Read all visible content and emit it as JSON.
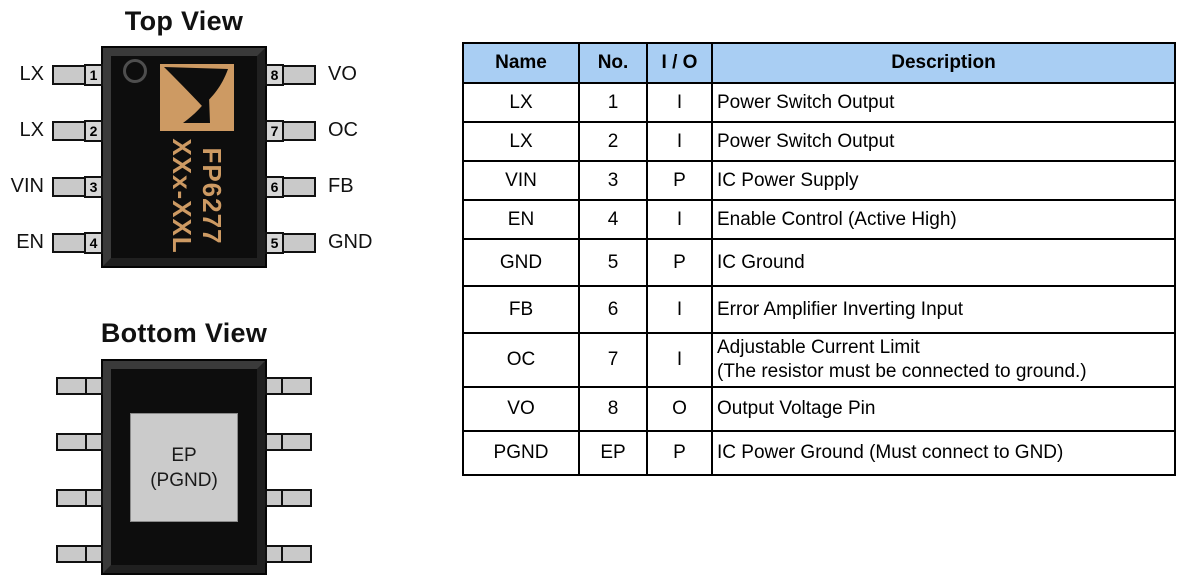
{
  "colors": {
    "table_header_bg": "#a9cef3",
    "chip_marking": "#cd9a63",
    "chip_body": "#0d0d0d",
    "chip_bevel": "#333333",
    "pin_fill": "#c9c9c9",
    "pin_number_fill": "#d6d6d6",
    "pad_fill": "#cbcbcb"
  },
  "top_view": {
    "title": "Top View",
    "left_pins": [
      {
        "label": "LX",
        "number": "1"
      },
      {
        "label": "LX",
        "number": "2"
      },
      {
        "label": "VIN",
        "number": "3"
      },
      {
        "label": "EN",
        "number": "4"
      }
    ],
    "right_pins": [
      {
        "label": "VO",
        "number": "8"
      },
      {
        "label": "OC",
        "number": "7"
      },
      {
        "label": "FB",
        "number": "6"
      },
      {
        "label": "GND",
        "number": "5"
      }
    ],
    "marking": {
      "line1": "FP6277",
      "line2": "XXx-XXL"
    }
  },
  "bottom_view": {
    "title": "Bottom View",
    "pad": {
      "line1": "EP",
      "line2": "(PGND)"
    },
    "pins_per_side": 4
  },
  "pin_table": {
    "columns": [
      "Name",
      "No.",
      "I / O",
      "Description"
    ],
    "rows": [
      {
        "name": "LX",
        "no": "1",
        "io": "I",
        "description": "Power Switch Output"
      },
      {
        "name": "LX",
        "no": "2",
        "io": "I",
        "description": "Power Switch Output"
      },
      {
        "name": "VIN",
        "no": "3",
        "io": "P",
        "description": "IC Power Supply"
      },
      {
        "name": "EN",
        "no": "4",
        "io": "I",
        "description": "Enable Control (Active High)"
      },
      {
        "name": "GND",
        "no": "5",
        "io": "P",
        "description": "IC Ground"
      },
      {
        "name": "FB",
        "no": "6",
        "io": "I",
        "description": "Error Amplifier Inverting Input"
      },
      {
        "name": "OC",
        "no": "7",
        "io": "I",
        "description": "Adjustable Current Limit\n(The resistor must be connected to ground.)"
      },
      {
        "name": "VO",
        "no": "8",
        "io": "O",
        "description": "Output Voltage Pin"
      },
      {
        "name": "PGND",
        "no": "EP",
        "io": "P",
        "description": "IC Power Ground (Must connect to GND)"
      }
    ]
  }
}
